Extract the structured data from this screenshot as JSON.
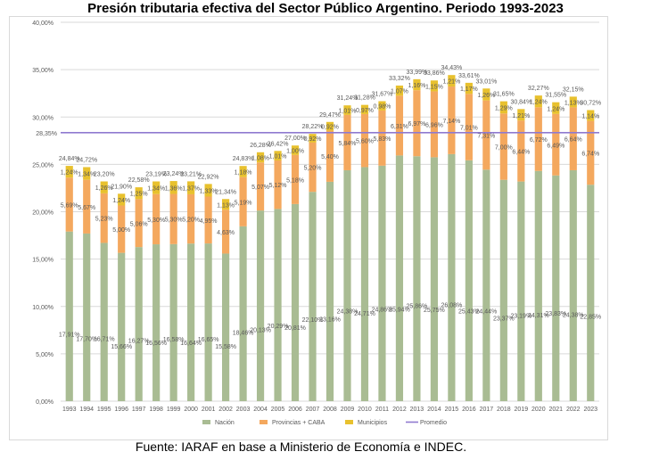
{
  "title": "Presión tributaria efectiva del Sector Público Argentino. Periodo 1993-2023",
  "source": "Fuente: IARAF en base a Ministerio de Economía e INDEC.",
  "colors": {
    "nacion": "#a9bc93",
    "provincias": "#f4a85e",
    "municipios": "#e8c12e",
    "promedio": "#8f7ad0",
    "grid": "#d9d9d9",
    "text": "#595959"
  },
  "chart_data": {
    "type": "bar",
    "stacked": true,
    "title": "Presión tributaria efectiva del Sector Público Argentino. Periodo 1993-2023",
    "xlabel": "",
    "ylabel": "",
    "ylim": [
      0,
      40
    ],
    "y_ticks": [
      "0,00%",
      "5,00%",
      "10,00%",
      "15,00%",
      "20,00%",
      "25,00%",
      "30,00%",
      "35,00%",
      "40,00%"
    ],
    "grid": true,
    "legend_position": "bottom",
    "categories": [
      "1993",
      "1994",
      "1995",
      "1996",
      "1997",
      "1998",
      "1999",
      "2000",
      "2001",
      "2002",
      "2003",
      "2004",
      "2005",
      "2006",
      "2007",
      "2008",
      "2009",
      "2010",
      "2011",
      "2012",
      "2013",
      "2014",
      "2015",
      "2016",
      "2017",
      "2018",
      "2019",
      "2020",
      "2021",
      "2022",
      "2023"
    ],
    "series": [
      {
        "name": "Nación",
        "values": [
          17.91,
          17.7,
          16.71,
          15.66,
          16.27,
          16.56,
          16.58,
          16.64,
          16.65,
          15.58,
          18.46,
          20.13,
          20.29,
          20.81,
          22.1,
          23.16,
          24.38,
          24.71,
          24.86,
          25.94,
          25.86,
          25.75,
          26.08,
          25.43,
          24.44,
          23.37,
          23.19,
          24.31,
          23.83,
          24.38,
          22.85
        ],
        "labels": [
          "17,91%",
          "17,70%",
          "16,71%",
          "15,66%",
          "16,27%",
          "16,56%",
          "16,58%",
          "16,64%",
          "16,65%",
          "15,58%",
          "18,46%",
          "20,13%",
          "20,29%",
          "20,81%",
          "22,10%",
          "23,16%",
          "24,38%",
          "24,71%",
          "24,86%",
          "25,94%",
          "25,86%",
          "25,75%",
          "26,08%",
          "25,43%",
          "24,44%",
          "23,37%",
          "23,19%",
          "24,31%",
          "23,83%",
          "24,38%",
          "22,85%"
        ]
      },
      {
        "name": "Provincias + CABA",
        "values": [
          5.69,
          5.67,
          5.23,
          5.0,
          5.06,
          5.3,
          5.3,
          5.2,
          4.95,
          4.63,
          5.19,
          5.07,
          5.12,
          5.18,
          5.2,
          5.4,
          5.84,
          5.6,
          5.83,
          6.31,
          6.97,
          6.96,
          7.14,
          7.01,
          7.31,
          7.0,
          6.44,
          6.72,
          6.49,
          6.64,
          6.74
        ],
        "labels": [
          "5,69%",
          "5,67%",
          "5,23%",
          "5,00%",
          "5,06%",
          "5,30%",
          "5,30%",
          "5,20%",
          "4,95%",
          "4,63%",
          "5,19%",
          "5,07%",
          "5,12%",
          "5,18%",
          "5,20%",
          "5,40%",
          "5,84%",
          "5,60%",
          "5,83%",
          "6,31%",
          "6,97%",
          "6,96%",
          "7,14%",
          "7,01%",
          "7,31%",
          "7,00%",
          "6,44%",
          "6,72%",
          "6,49%",
          "6,64%",
          "6,74%"
        ]
      },
      {
        "name": "Municipios",
        "values": [
          1.24,
          1.34,
          1.26,
          1.24,
          1.25,
          1.34,
          1.36,
          1.37,
          1.33,
          1.13,
          1.18,
          1.08,
          1.01,
          1.0,
          0.92,
          0.92,
          1.01,
          0.97,
          0.98,
          1.07,
          1.16,
          1.15,
          1.21,
          1.17,
          1.26,
          1.29,
          1.21,
          1.24,
          1.24,
          1.13,
          1.14
        ],
        "labels": [
          "1,24%",
          "1,34%",
          "1,26%",
          "1,24%",
          "1,25%",
          "1,34%",
          "1,36%",
          "1,37%",
          "1,33%",
          "1,13%",
          "1,18%",
          "1,08%",
          "1,01%",
          "1,00%",
          "0,92%",
          "0,92%",
          "1,01%",
          "0,97%",
          "0,98%",
          "1,07%",
          "1,16%",
          "1,15%",
          "1,21%",
          "1,17%",
          "1,26%",
          "1,29%",
          "1,21%",
          "1,24%",
          "1,24%",
          "1,13%",
          "1,14%"
        ]
      }
    ],
    "totals": [
      "24,84%",
      "24,72%",
      "23,20%",
      "21,90%",
      "22,58%",
      "23,19%",
      "23,24%",
      "23,21%",
      "22,92%",
      "21,34%",
      "24,83%",
      "26,28%",
      "26,42%",
      "27,00%",
      "28,22%",
      "29,47%",
      "31,24%",
      "31,28%",
      "31,67%",
      "33,32%",
      "33,99%",
      "33,86%",
      "34,43%",
      "33,61%",
      "33,01%",
      "31,65%",
      "30,84%",
      "32,27%",
      "31,55%",
      "32,15%",
      "30,72%"
    ],
    "promedio": {
      "name": "Promedio",
      "value": 28.35,
      "label": "28,35%"
    }
  }
}
